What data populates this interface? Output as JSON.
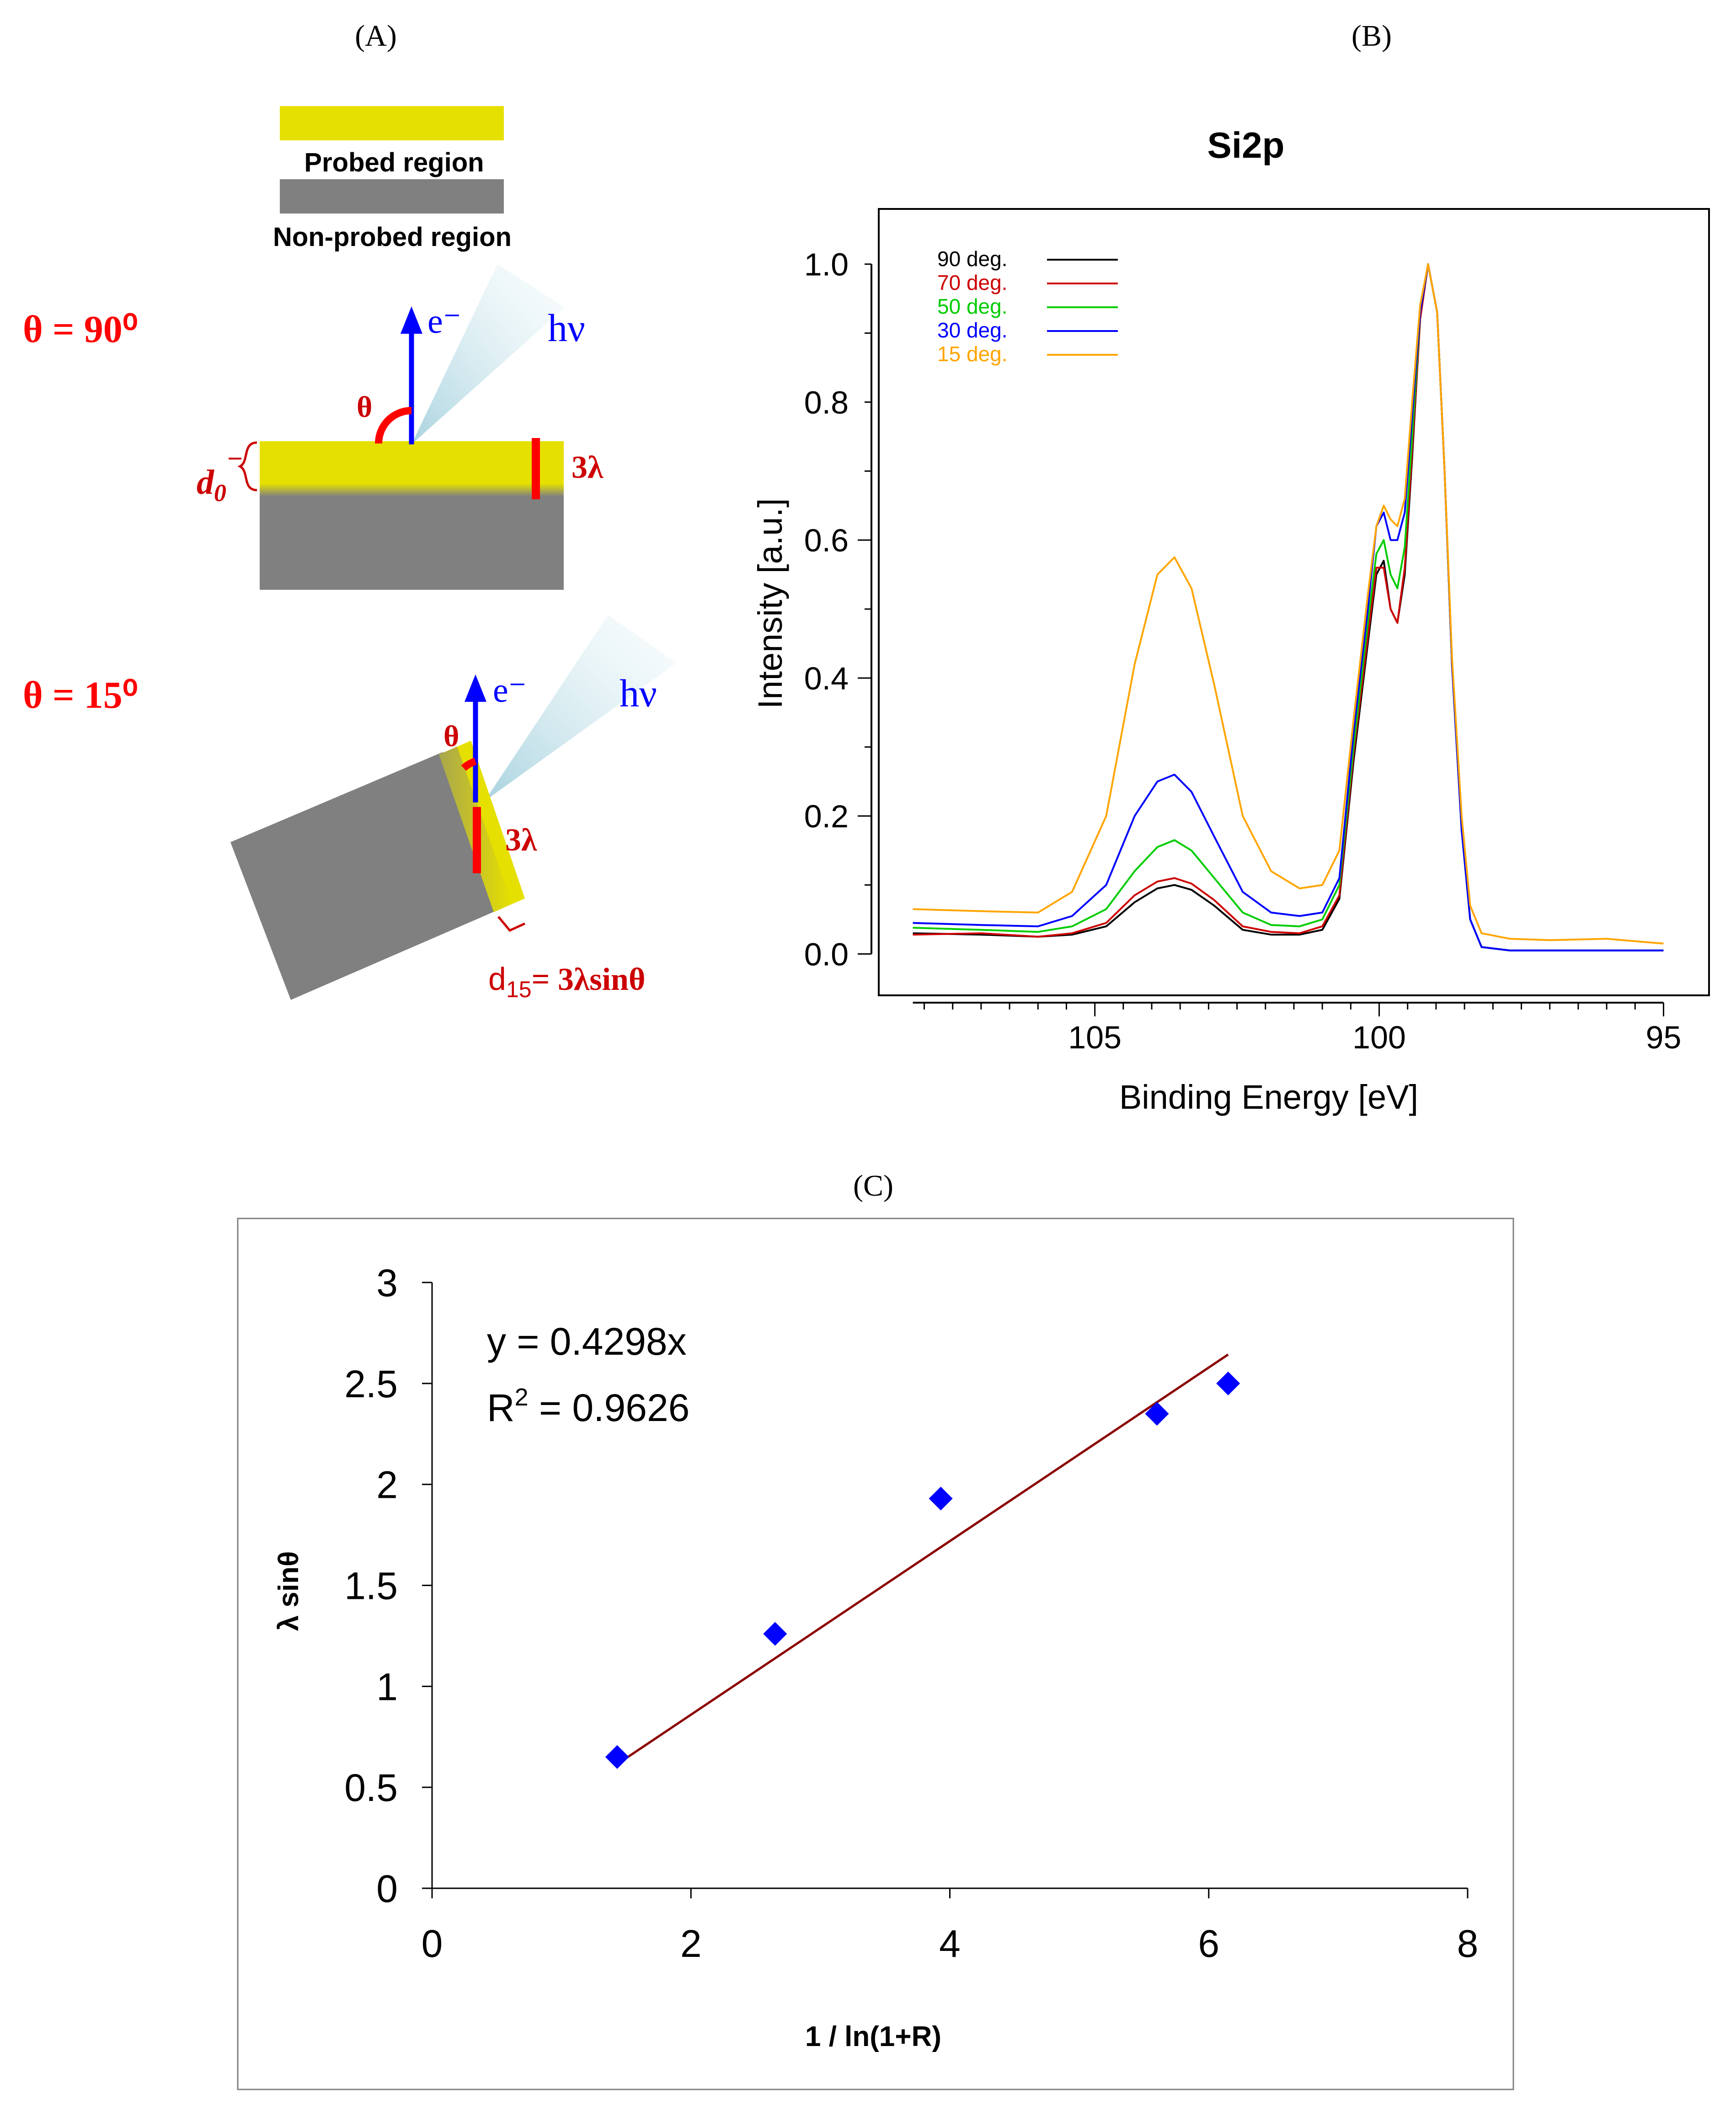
{
  "panels": {
    "a": {
      "label": "(A)",
      "legend": {
        "probed": "Probed region",
        "non_probed": "Non-probed region"
      },
      "colors": {
        "probed": "#e6e000",
        "non_probed": "#808080",
        "angle": "#ff0000",
        "electron": "#0000ff",
        "depth_label": "#cc0000"
      },
      "case_90": {
        "title": "θ = 90⁰",
        "electron": "e⁻",
        "photon": "hν",
        "angle": "θ",
        "depth_symbol": "d",
        "depth_subscript": "0",
        "thickness": "3λ"
      },
      "case_15": {
        "title": "θ = 15⁰",
        "electron": "e⁻",
        "photon": "hν",
        "angle": "θ",
        "thickness": "3λ",
        "depth_symbol": "d",
        "depth_subscript": "15",
        "depth_formula": "= 3λsinθ"
      }
    },
    "b": {
      "label": "(B)"
    },
    "c": {
      "label": "(C)"
    }
  },
  "chart_data": [
    {
      "panel": "B",
      "type": "line",
      "title": "Si2p",
      "xlabel": "Binding Energy [eV]",
      "ylabel": "Intensity [a.u.]",
      "xlim": [
        108.8,
        94.2
      ],
      "ylim": [
        -0.06,
        1.08
      ],
      "x_ticks": [
        105,
        100,
        95
      ],
      "x_tick_labels": [
        "105",
        "100",
        "95"
      ],
      "y_ticks": [
        0.0,
        0.2,
        0.4,
        0.6,
        0.8,
        1.0
      ],
      "y_tick_labels": [
        "0.0",
        "0.2",
        "0.4",
        "0.6",
        "0.8",
        "1.0"
      ],
      "grid": false,
      "legend_position": "top-left",
      "series": [
        {
          "name": "90 deg.",
          "color": "#000000",
          "x": [
            108.2,
            107.0,
            106.0,
            105.4,
            104.8,
            104.3,
            103.9,
            103.6,
            103.3,
            102.9,
            102.4,
            101.9,
            101.4,
            101.0,
            100.7,
            100.45,
            100.2,
            100.05,
            99.92,
            99.8,
            99.68,
            99.55,
            99.42,
            99.28,
            99.14,
            98.98,
            98.85,
            98.72,
            98.55,
            98.4,
            98.2,
            97.7,
            97.0,
            96.0,
            95.0
          ],
          "y": [
            0.03,
            0.028,
            0.025,
            0.028,
            0.04,
            0.075,
            0.095,
            0.1,
            0.093,
            0.07,
            0.035,
            0.028,
            0.028,
            0.035,
            0.08,
            0.28,
            0.45,
            0.55,
            0.57,
            0.5,
            0.48,
            0.55,
            0.72,
            0.92,
            1.0,
            0.93,
            0.7,
            0.42,
            0.18,
            0.05,
            0.01,
            0.005,
            0.005,
            0.005,
            0.005
          ]
        },
        {
          "name": "70 deg.",
          "color": "#cc0000",
          "x": [
            108.2,
            107.0,
            106.0,
            105.4,
            104.8,
            104.3,
            103.9,
            103.6,
            103.3,
            102.9,
            102.4,
            101.9,
            101.4,
            101.0,
            100.7,
            100.45,
            100.2,
            100.05,
            99.92,
            99.8,
            99.68,
            99.55,
            99.42,
            99.28,
            99.14,
            98.98,
            98.85,
            98.72,
            98.55,
            98.4,
            98.2,
            97.7,
            97.0,
            96.0,
            95.0
          ],
          "y": [
            0.028,
            0.03,
            0.025,
            0.03,
            0.045,
            0.085,
            0.105,
            0.11,
            0.102,
            0.078,
            0.04,
            0.032,
            0.03,
            0.04,
            0.085,
            0.29,
            0.46,
            0.56,
            0.56,
            0.5,
            0.48,
            0.56,
            0.73,
            0.92,
            1.0,
            0.93,
            0.7,
            0.42,
            0.18,
            0.05,
            0.01,
            0.005,
            0.005,
            0.005,
            0.005
          ]
        },
        {
          "name": "50 deg.",
          "color": "#00cc00",
          "x": [
            108.2,
            107.0,
            106.0,
            105.4,
            104.8,
            104.3,
            103.9,
            103.6,
            103.3,
            102.9,
            102.4,
            101.9,
            101.4,
            101.0,
            100.7,
            100.45,
            100.2,
            100.05,
            99.92,
            99.8,
            99.68,
            99.55,
            99.42,
            99.28,
            99.14,
            98.98,
            98.85,
            98.72,
            98.55,
            98.4,
            98.2,
            97.7,
            97.0,
            96.0,
            95.0
          ],
          "y": [
            0.038,
            0.035,
            0.032,
            0.04,
            0.065,
            0.12,
            0.155,
            0.165,
            0.15,
            0.11,
            0.06,
            0.042,
            0.04,
            0.05,
            0.1,
            0.3,
            0.48,
            0.58,
            0.6,
            0.55,
            0.53,
            0.59,
            0.75,
            0.93,
            1.0,
            0.93,
            0.7,
            0.42,
            0.18,
            0.05,
            0.01,
            0.005,
            0.005,
            0.005,
            0.005
          ]
        },
        {
          "name": "30 deg.",
          "color": "#0000ff",
          "x": [
            108.2,
            107.0,
            106.0,
            105.4,
            104.8,
            104.3,
            103.9,
            103.6,
            103.3,
            102.9,
            102.4,
            101.9,
            101.4,
            101.0,
            100.7,
            100.45,
            100.2,
            100.05,
            99.92,
            99.8,
            99.68,
            99.55,
            99.42,
            99.28,
            99.14,
            98.98,
            98.85,
            98.72,
            98.55,
            98.4,
            98.2,
            97.7,
            97.0,
            96.0,
            95.0
          ],
          "y": [
            0.045,
            0.042,
            0.04,
            0.055,
            0.1,
            0.2,
            0.25,
            0.26,
            0.235,
            0.17,
            0.09,
            0.06,
            0.055,
            0.06,
            0.11,
            0.32,
            0.5,
            0.62,
            0.64,
            0.6,
            0.6,
            0.64,
            0.78,
            0.93,
            1.0,
            0.93,
            0.7,
            0.42,
            0.18,
            0.05,
            0.01,
            0.005,
            0.005,
            0.005,
            0.005
          ]
        },
        {
          "name": "15 deg.",
          "color": "#ffa500",
          "x": [
            108.2,
            107.0,
            106.0,
            105.4,
            104.8,
            104.3,
            103.9,
            103.6,
            103.3,
            102.9,
            102.4,
            101.9,
            101.4,
            101.0,
            100.7,
            100.45,
            100.2,
            100.05,
            99.92,
            99.8,
            99.68,
            99.55,
            99.42,
            99.28,
            99.14,
            98.98,
            98.85,
            98.72,
            98.55,
            98.4,
            98.2,
            97.7,
            97.0,
            96.0,
            95.0
          ],
          "y": [
            0.065,
            0.062,
            0.06,
            0.09,
            0.2,
            0.42,
            0.55,
            0.575,
            0.53,
            0.39,
            0.2,
            0.12,
            0.095,
            0.1,
            0.15,
            0.34,
            0.52,
            0.62,
            0.65,
            0.63,
            0.62,
            0.66,
            0.8,
            0.94,
            1.0,
            0.93,
            0.7,
            0.43,
            0.2,
            0.07,
            0.03,
            0.022,
            0.02,
            0.022,
            0.015
          ]
        }
      ]
    },
    {
      "panel": "C",
      "type": "scatter",
      "xlabel": "1 / ln(1+R)",
      "ylabel": "λ sinθ",
      "xlim": [
        0,
        8
      ],
      "ylim": [
        0,
        3
      ],
      "x_ticks": [
        0,
        2,
        4,
        6,
        8
      ],
      "x_tick_labels": [
        "0",
        "2",
        "4",
        "6",
        "8"
      ],
      "y_ticks": [
        0,
        0.5,
        1,
        1.5,
        2,
        2.5,
        3
      ],
      "y_tick_labels": [
        "0",
        "0.5",
        "1",
        "1.5",
        "2",
        "2.5",
        "3"
      ],
      "grid": false,
      "marker_color": "#0000ff",
      "points": [
        {
          "x": 1.43,
          "y": 0.65
        },
        {
          "x": 2.65,
          "y": 1.26
        },
        {
          "x": 3.93,
          "y": 1.93
        },
        {
          "x": 5.6,
          "y": 2.35
        },
        {
          "x": 6.15,
          "y": 2.5
        }
      ],
      "fit": {
        "slope": 0.4298,
        "x_range": [
          1.43,
          6.15
        ],
        "color": "#8b0000",
        "equation": "y = 0.4298x",
        "r2_prefix": "R",
        "r2_superscript": "2",
        "r2_value": " = 0.9626"
      }
    }
  ]
}
